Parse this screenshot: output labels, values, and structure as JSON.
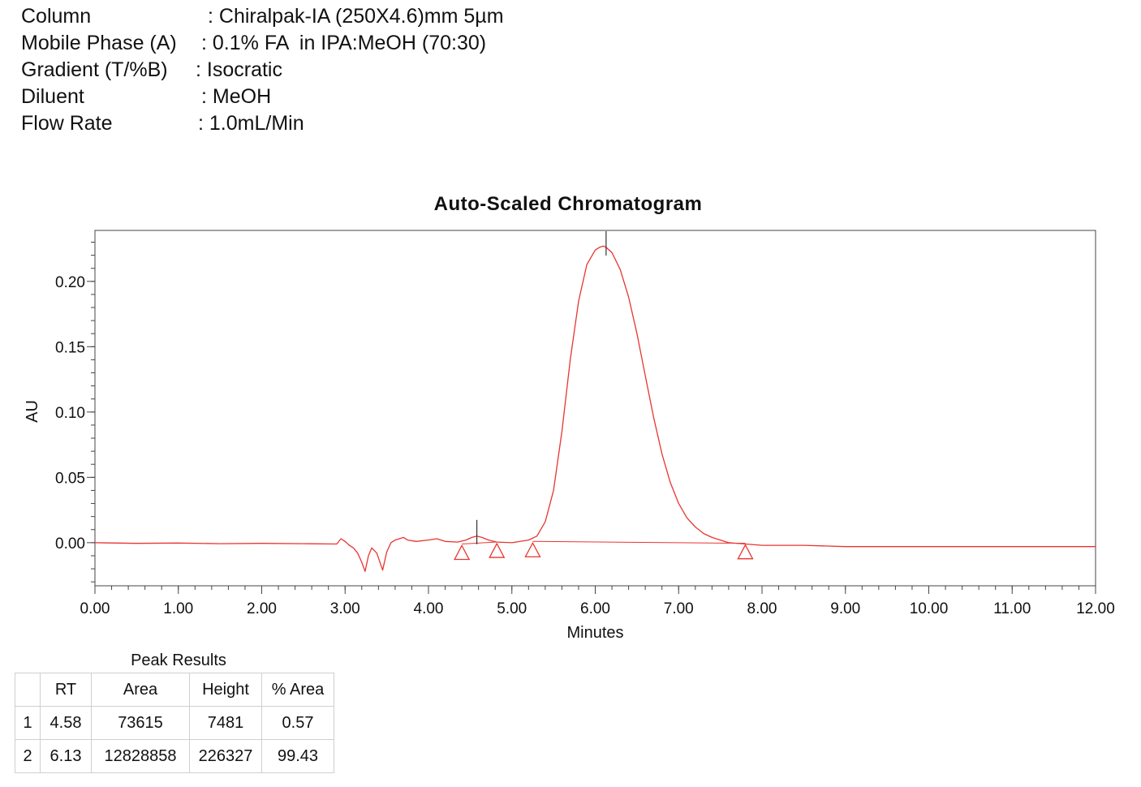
{
  "header": {
    "rows": [
      {
        "label": "Column",
        "value": ": Chiralpak-IA (250X4.6)mm 5µm"
      },
      {
        "label": "Mobile Phase (A)",
        "value": ": 0.1% FA  in IPA:MeOH (70:30)"
      },
      {
        "label": "Gradient (T/%B)",
        "value": ": Isocratic"
      },
      {
        "label": "Diluent",
        "value": ": MeOH"
      },
      {
        "label": "Flow Rate",
        "value": ": 1.0mL/Min"
      }
    ]
  },
  "chart_data": {
    "type": "line",
    "title": "Auto-Scaled Chromatogram",
    "xlabel": "Minutes",
    "ylabel": "AU",
    "xlim": [
      0,
      12
    ],
    "ylim": [
      -0.033,
      0.239
    ],
    "x_ticks": [
      "0.00",
      "1.00",
      "2.00",
      "3.00",
      "4.00",
      "5.00",
      "6.00",
      "7.00",
      "8.00",
      "9.00",
      "10.00",
      "11.00",
      "12.00"
    ],
    "y_ticks": [
      "0.00",
      "0.05",
      "0.10",
      "0.15",
      "0.20"
    ],
    "grid": false,
    "line_color": "#e8352f",
    "series": [
      {
        "x": [
          0.0,
          0.5,
          1.0,
          1.5,
          2.0,
          2.5,
          2.9,
          2.95,
          3.0,
          3.05,
          3.1,
          3.15,
          3.2,
          3.24,
          3.28,
          3.32,
          3.38,
          3.45,
          3.5,
          3.55,
          3.6,
          3.65,
          3.7,
          3.75,
          3.85,
          4.0,
          4.1,
          4.2,
          4.35,
          4.45,
          4.52,
          4.58,
          4.64,
          4.72,
          4.82,
          5.0,
          5.2,
          5.3,
          5.4,
          5.5,
          5.6,
          5.7,
          5.8,
          5.9,
          6.0,
          6.05,
          6.1,
          6.13,
          6.2,
          6.3,
          6.4,
          6.5,
          6.6,
          6.7,
          6.8,
          6.9,
          7.0,
          7.1,
          7.2,
          7.3,
          7.4,
          7.5,
          7.6,
          7.8,
          8.0,
          8.5,
          9.0,
          9.5,
          10.0,
          10.5,
          11.0,
          11.5,
          12.0
        ],
        "y": [
          0.0,
          -0.0005,
          -0.0003,
          -0.0008,
          -0.0005,
          -0.0008,
          -0.001,
          0.003,
          0.001,
          -0.002,
          -0.004,
          -0.008,
          -0.015,
          -0.022,
          -0.01,
          -0.004,
          -0.008,
          -0.021,
          -0.007,
          0.0,
          0.002,
          0.003,
          0.004,
          0.002,
          0.001,
          0.002,
          0.003,
          0.001,
          0.0005,
          0.002,
          0.004,
          0.005,
          0.004,
          0.002,
          0.0005,
          0.0,
          0.002,
          0.005,
          0.016,
          0.04,
          0.085,
          0.14,
          0.185,
          0.213,
          0.224,
          0.226,
          0.227,
          0.226,
          0.222,
          0.209,
          0.188,
          0.16,
          0.128,
          0.096,
          0.068,
          0.046,
          0.03,
          0.019,
          0.012,
          0.007,
          0.004,
          0.002,
          0.0,
          -0.001,
          -0.002,
          -0.002,
          -0.003,
          -0.003,
          -0.003,
          -0.003,
          -0.003,
          -0.003,
          -0.003
        ]
      }
    ],
    "baselines": [
      {
        "x": [
          4.4,
          4.82
        ],
        "y": [
          -0.001,
          0.0005
        ]
      },
      {
        "x": [
          5.25,
          7.8
        ],
        "y": [
          0.001,
          -0.0005
        ]
      }
    ],
    "peak_markers": [
      4.58,
      6.13
    ],
    "integration_markers": [
      {
        "x": 4.4,
        "y": -0.001
      },
      {
        "x": 4.82,
        "y": 0.0005
      },
      {
        "x": 5.25,
        "y": 0.001
      },
      {
        "x": 7.8,
        "y": -0.0005
      }
    ]
  },
  "results": {
    "caption": "Peak Results",
    "columns": [
      "",
      "RT",
      "Area",
      "Height",
      "% Area"
    ],
    "rows": [
      [
        "1",
        "4.58",
        "73615",
        "7481",
        "0.57"
      ],
      [
        "2",
        "6.13",
        "12828858",
        "226327",
        "99.43"
      ]
    ]
  }
}
